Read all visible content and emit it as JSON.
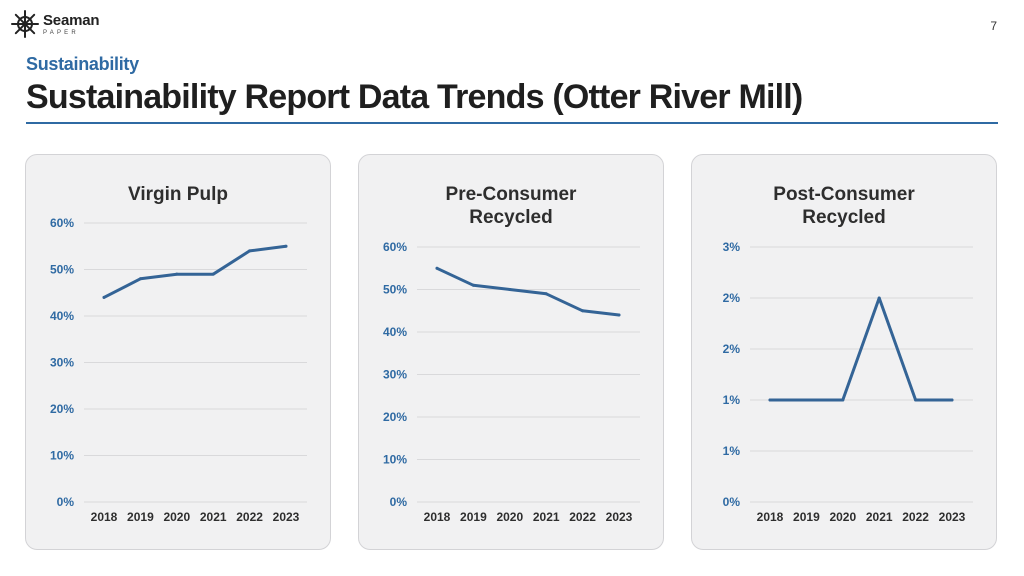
{
  "header": {
    "logo_name": "Seaman",
    "logo_sub": "PAPER",
    "page_number": "7",
    "kicker": "Sustainability",
    "title": "Sustainability Report Data Trends (Otter River Mill)"
  },
  "colors": {
    "accent": "#2f6aa3",
    "line": "#346496",
    "panel": "#f1f1f2"
  },
  "chart_data": [
    {
      "type": "line",
      "title_lines": [
        "Virgin Pulp"
      ],
      "categories": [
        "2018",
        "2019",
        "2020",
        "2021",
        "2022",
        "2023"
      ],
      "series": [
        {
          "name": "Virgin Pulp",
          "values": [
            44,
            48,
            49,
            49,
            54,
            55
          ]
        }
      ],
      "yticks": [
        0,
        10,
        20,
        30,
        40,
        50,
        60
      ],
      "ytick_labels": [
        "0%",
        "10%",
        "20%",
        "30%",
        "40%",
        "50%",
        "60%"
      ],
      "ylim": [
        0,
        60
      ],
      "ylabel": "",
      "xlabel": ""
    },
    {
      "type": "line",
      "title_lines": [
        "Pre-Consumer",
        "Recycled"
      ],
      "categories": [
        "2018",
        "2019",
        "2020",
        "2021",
        "2022",
        "2023"
      ],
      "series": [
        {
          "name": "Pre-Consumer Recycled",
          "values": [
            55,
            51,
            50,
            49,
            45,
            44
          ]
        }
      ],
      "yticks": [
        0,
        10,
        20,
        30,
        40,
        50,
        60
      ],
      "ytick_labels": [
        "0%",
        "10%",
        "20%",
        "30%",
        "40%",
        "50%",
        "60%"
      ],
      "ylim": [
        0,
        60
      ],
      "ylabel": "",
      "xlabel": ""
    },
    {
      "type": "line",
      "title_lines": [
        "Post-Consumer",
        "Recycled"
      ],
      "categories": [
        "2018",
        "2019",
        "2020",
        "2021",
        "2022",
        "2023"
      ],
      "series": [
        {
          "name": "Post-Consumer Recycled",
          "values": [
            1.0,
            1.0,
            1.0,
            2.0,
            1.0,
            1.0
          ]
        }
      ],
      "yticks": [
        0,
        0.5,
        1.0,
        1.5,
        2.0,
        2.5
      ],
      "ytick_labels": [
        "0%",
        "1%",
        "1%",
        "2%",
        "2%",
        "3%"
      ],
      "ylim": [
        0,
        2.5
      ],
      "ylabel": "",
      "xlabel": ""
    }
  ]
}
